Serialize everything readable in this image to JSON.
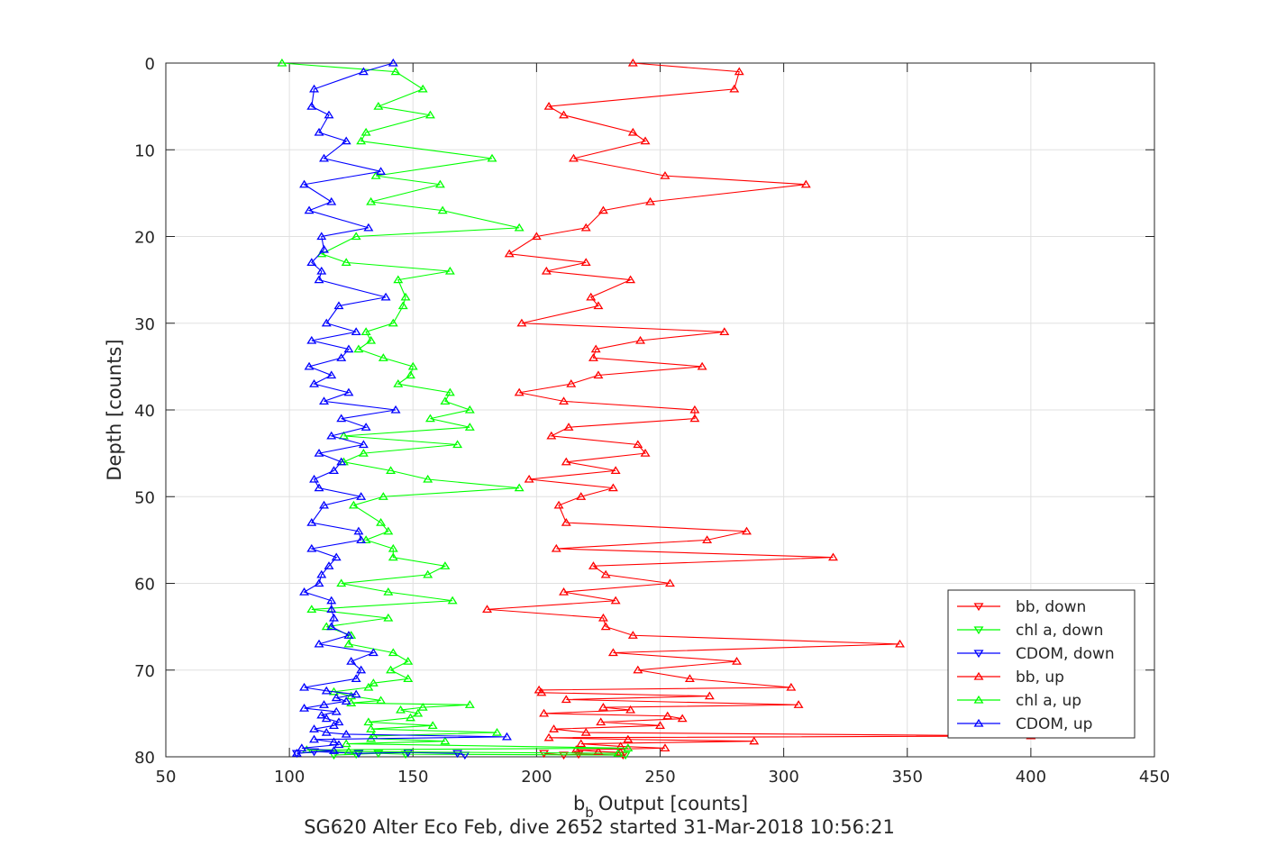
{
  "chart_data": {
    "type": "line",
    "title": "SG620 Alter Eco Feb, dive 2652 started 31-Mar-2018 10:56:21",
    "xlabel": "Output [counts]",
    "xlabel_prefix": "b",
    "xlabel_subscript": "b",
    "ylabel": "Depth [counts]",
    "xlim": [
      50,
      450
    ],
    "ylim": [
      0,
      80
    ],
    "y_reversed": true,
    "x_ticks": [
      50,
      100,
      150,
      200,
      250,
      300,
      350,
      400,
      450
    ],
    "y_ticks": [
      0,
      10,
      20,
      30,
      40,
      50,
      60,
      70,
      80
    ],
    "grid": true,
    "legend_position": "lower-right",
    "series": [
      {
        "name": "bb, down",
        "color": "#ff0000",
        "marker": "triangle-down",
        "points": [
          [
            203,
            79.6
          ],
          [
            211,
            79.8
          ],
          [
            217,
            79.7
          ],
          [
            235,
            79.8
          ]
        ]
      },
      {
        "name": "chl a, down",
        "color": "#00ff00",
        "marker": "triangle-down",
        "points": [
          [
            118,
            79.8
          ],
          [
            127,
            79.7
          ],
          [
            136,
            79.6
          ],
          [
            147,
            79.7
          ],
          [
            236,
            79.8
          ]
        ]
      },
      {
        "name": "CDOM, down",
        "color": "#0000ff",
        "marker": "triangle-down",
        "points": [
          [
            103,
            79.6
          ],
          [
            110,
            79.4
          ],
          [
            128,
            79.6
          ],
          [
            148,
            79.5
          ],
          [
            168,
            79.6
          ],
          [
            171,
            79.8
          ]
        ]
      },
      {
        "name": "bb, up",
        "color": "#ff0000",
        "marker": "triangle-up",
        "points": [
          [
            239,
            0
          ],
          [
            282,
            1
          ],
          [
            280,
            3
          ],
          [
            205,
            5
          ],
          [
            211,
            6
          ],
          [
            239,
            8
          ],
          [
            244,
            9
          ],
          [
            215,
            11
          ],
          [
            252,
            13
          ],
          [
            309,
            14
          ],
          [
            246,
            16
          ],
          [
            227,
            17
          ],
          [
            220,
            19
          ],
          [
            200,
            20
          ],
          [
            189,
            22
          ],
          [
            220,
            23
          ],
          [
            204,
            24
          ],
          [
            238,
            25
          ],
          [
            222,
            27
          ],
          [
            225,
            28
          ],
          [
            194,
            30
          ],
          [
            276,
            31
          ],
          [
            242,
            32
          ],
          [
            224,
            33
          ],
          [
            223,
            34
          ],
          [
            267,
            35
          ],
          [
            225,
            36
          ],
          [
            214,
            37
          ],
          [
            193,
            38
          ],
          [
            211,
            39
          ],
          [
            264,
            40
          ],
          [
            264,
            41
          ],
          [
            213,
            42
          ],
          [
            206,
            43
          ],
          [
            241,
            44
          ],
          [
            244,
            45
          ],
          [
            212,
            46
          ],
          [
            232,
            47
          ],
          [
            197,
            48
          ],
          [
            231,
            49
          ],
          [
            218,
            50
          ],
          [
            209,
            51
          ],
          [
            212,
            53
          ],
          [
            285,
            54
          ],
          [
            269,
            55
          ],
          [
            208,
            56
          ],
          [
            320,
            57
          ],
          [
            223,
            58
          ],
          [
            228,
            59
          ],
          [
            254,
            60
          ],
          [
            211,
            61
          ],
          [
            232,
            62
          ],
          [
            180,
            63
          ],
          [
            227,
            64
          ],
          [
            228,
            65
          ],
          [
            239,
            66
          ],
          [
            347,
            67
          ],
          [
            231,
            68
          ],
          [
            281,
            69
          ],
          [
            241,
            70
          ],
          [
            262,
            71
          ],
          [
            303,
            72
          ],
          [
            201,
            72.3
          ],
          [
            202,
            72.6
          ],
          [
            270,
            73
          ],
          [
            212,
            73.4
          ],
          [
            306,
            74
          ],
          [
            227,
            74.3
          ],
          [
            238,
            74.6
          ],
          [
            203,
            75
          ],
          [
            253,
            75.3
          ],
          [
            259,
            75.6
          ],
          [
            226,
            76
          ],
          [
            250,
            76.4
          ],
          [
            207,
            76.8
          ],
          [
            220,
            77.2
          ],
          [
            400,
            77.6
          ],
          [
            205,
            77.8
          ],
          [
            237,
            78
          ],
          [
            288,
            78.2
          ],
          [
            218,
            78.5
          ],
          [
            234,
            78.8
          ],
          [
            252,
            79
          ],
          [
            216,
            79.2
          ],
          [
            225,
            79.4
          ],
          [
            234,
            79.5
          ]
        ]
      },
      {
        "name": "chl a, up",
        "color": "#00ff00",
        "marker": "triangle-up",
        "points": [
          [
            97,
            0
          ],
          [
            143,
            1
          ],
          [
            154,
            3
          ],
          [
            136,
            5
          ],
          [
            157,
            6
          ],
          [
            131,
            8
          ],
          [
            129,
            9
          ],
          [
            182,
            11
          ],
          [
            135,
            13
          ],
          [
            161,
            14
          ],
          [
            133,
            16
          ],
          [
            162,
            17
          ],
          [
            193,
            19
          ],
          [
            127,
            20
          ],
          [
            113,
            22
          ],
          [
            123,
            23
          ],
          [
            165,
            24
          ],
          [
            144,
            25
          ],
          [
            147,
            27
          ],
          [
            146,
            28
          ],
          [
            142,
            30
          ],
          [
            131,
            31
          ],
          [
            133,
            32
          ],
          [
            128,
            33
          ],
          [
            138,
            34
          ],
          [
            150,
            35
          ],
          [
            149,
            36
          ],
          [
            144,
            37
          ],
          [
            165,
            38
          ],
          [
            163,
            39
          ],
          [
            173,
            40
          ],
          [
            157,
            41
          ],
          [
            173,
            42
          ],
          [
            122,
            43
          ],
          [
            168,
            44
          ],
          [
            130,
            45
          ],
          [
            122,
            46
          ],
          [
            141,
            47
          ],
          [
            156,
            48
          ],
          [
            193,
            49
          ],
          [
            138,
            50
          ],
          [
            126,
            51
          ],
          [
            137,
            53
          ],
          [
            140,
            54
          ],
          [
            131,
            55
          ],
          [
            142,
            56
          ],
          [
            142,
            57
          ],
          [
            163,
            58
          ],
          [
            156,
            59
          ],
          [
            121,
            60
          ],
          [
            140,
            61
          ],
          [
            166,
            62
          ],
          [
            109,
            63
          ],
          [
            140,
            64
          ],
          [
            115,
            65
          ],
          [
            125,
            66
          ],
          [
            124,
            67
          ],
          [
            142,
            68
          ],
          [
            148,
            69
          ],
          [
            141,
            70
          ],
          [
            148,
            71
          ],
          [
            134,
            71.5
          ],
          [
            132,
            72
          ],
          [
            118,
            72.5
          ],
          [
            125,
            73
          ],
          [
            137,
            73.5
          ],
          [
            125,
            73.8
          ],
          [
            173,
            74
          ],
          [
            154,
            74.3
          ],
          [
            145,
            74.6
          ],
          [
            152,
            75
          ],
          [
            149,
            75.5
          ],
          [
            132,
            76
          ],
          [
            158,
            76.4
          ],
          [
            133,
            76.8
          ],
          [
            184,
            77.2
          ],
          [
            134,
            77.6
          ],
          [
            133,
            77.9
          ],
          [
            163,
            78.2
          ],
          [
            123,
            78.5
          ],
          [
            237,
            79
          ],
          [
            107,
            79.2
          ],
          [
            124,
            79.4
          ],
          [
            233,
            79.6
          ]
        ]
      },
      {
        "name": "CDOM, up",
        "color": "#0000ff",
        "marker": "triangle-up",
        "points": [
          [
            142,
            0
          ],
          [
            130,
            1
          ],
          [
            110,
            3
          ],
          [
            109,
            5
          ],
          [
            116,
            6
          ],
          [
            112,
            8
          ],
          [
            123,
            9
          ],
          [
            114,
            11
          ],
          [
            137,
            12.5
          ],
          [
            106,
            14
          ],
          [
            117,
            16
          ],
          [
            108,
            17
          ],
          [
            132,
            19
          ],
          [
            113,
            20
          ],
          [
            114,
            21.5
          ],
          [
            109,
            23
          ],
          [
            113,
            24
          ],
          [
            112,
            25
          ],
          [
            139,
            27
          ],
          [
            120,
            28
          ],
          [
            115,
            30
          ],
          [
            127,
            31
          ],
          [
            109,
            32
          ],
          [
            124,
            33
          ],
          [
            121,
            34
          ],
          [
            108,
            35
          ],
          [
            117,
            36
          ],
          [
            110,
            37
          ],
          [
            124,
            38
          ],
          [
            114,
            39
          ],
          [
            143,
            40
          ],
          [
            121,
            41
          ],
          [
            131,
            42
          ],
          [
            117,
            43
          ],
          [
            130,
            44
          ],
          [
            112,
            45
          ],
          [
            121,
            46
          ],
          [
            118,
            47
          ],
          [
            110,
            48
          ],
          [
            112,
            49
          ],
          [
            129,
            50
          ],
          [
            114,
            51
          ],
          [
            109,
            53
          ],
          [
            128,
            54
          ],
          [
            129,
            55
          ],
          [
            109,
            56
          ],
          [
            119,
            57
          ],
          [
            116,
            58
          ],
          [
            113,
            59
          ],
          [
            112,
            60
          ],
          [
            106,
            61
          ],
          [
            117,
            62
          ],
          [
            117,
            63
          ],
          [
            118,
            64
          ],
          [
            117,
            65
          ],
          [
            124,
            66
          ],
          [
            112,
            67
          ],
          [
            134,
            68
          ],
          [
            125,
            69
          ],
          [
            129,
            70
          ],
          [
            127,
            71
          ],
          [
            106,
            72
          ],
          [
            115,
            72.4
          ],
          [
            127,
            72.8
          ],
          [
            119,
            73.2
          ],
          [
            123,
            73.6
          ],
          [
            114,
            74
          ],
          [
            106,
            74.4
          ],
          [
            119,
            74.8
          ],
          [
            113,
            75.2
          ],
          [
            115,
            75.6
          ],
          [
            120,
            76
          ],
          [
            118,
            76.4
          ],
          [
            110,
            76.8
          ],
          [
            115,
            77.2
          ],
          [
            123,
            77.4
          ],
          [
            188,
            77.7
          ],
          [
            110,
            78
          ],
          [
            118,
            78.3
          ],
          [
            120,
            78.6
          ],
          [
            105,
            79
          ],
          [
            118,
            79.3
          ],
          [
            103,
            79.6
          ]
        ]
      }
    ]
  }
}
